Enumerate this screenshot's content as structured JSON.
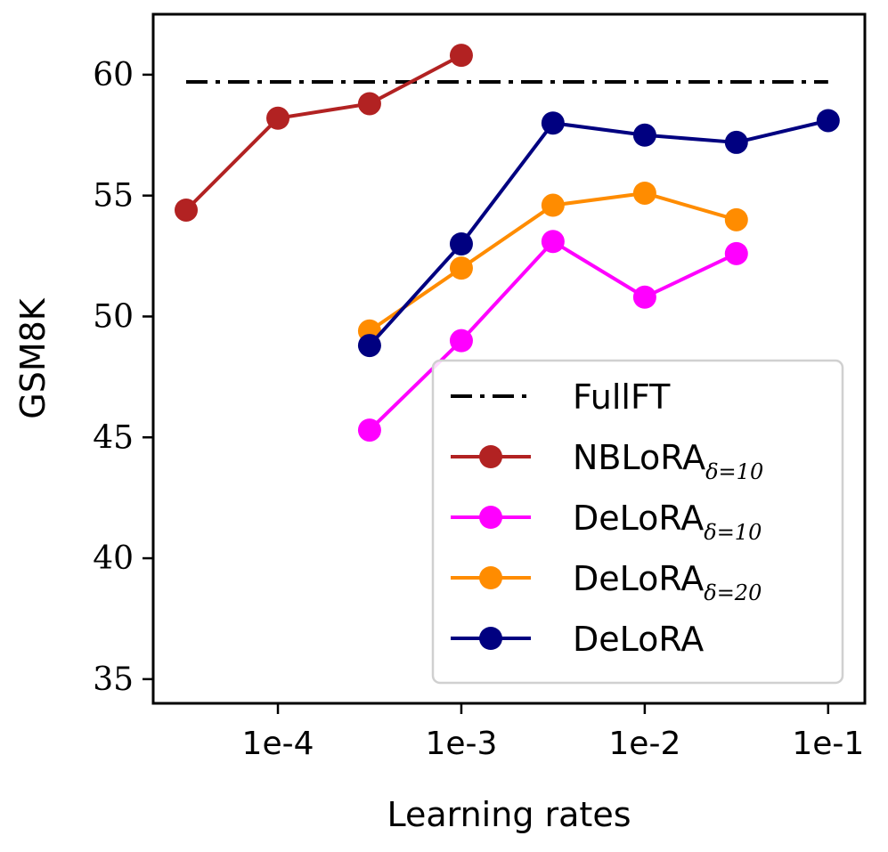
{
  "chart_data": {
    "type": "line",
    "title": "",
    "xlabel": "Learning rates",
    "ylabel": "GSM8K",
    "x_scale": "log",
    "xlim_log10": [
      -4.68,
      -0.8
    ],
    "ylim": [
      34,
      62.5
    ],
    "grid": false,
    "legend_position": "lower-right",
    "x_ticks": [
      {
        "label": "1e-4",
        "value": 0.0001
      },
      {
        "label": "1e-3",
        "value": 0.001
      },
      {
        "label": "1e-2",
        "value": 0.01
      },
      {
        "label": "1e-1",
        "value": 0.1
      }
    ],
    "y_ticks": [
      {
        "label": "35",
        "value": 35
      },
      {
        "label": "40",
        "value": 40
      },
      {
        "label": "45",
        "value": 45
      },
      {
        "label": "50",
        "value": 50
      },
      {
        "label": "55",
        "value": 55
      },
      {
        "label": "60",
        "value": 60
      }
    ],
    "series": [
      {
        "id": "fullft",
        "name": "FullFT",
        "name_sub": "",
        "color": "#000000",
        "style": "dashdot",
        "markers": false,
        "x": [
          3.16e-05,
          0.1
        ],
        "y": [
          59.7,
          59.7
        ]
      },
      {
        "id": "nblora-d10",
        "name": "NBLoRA",
        "name_sub": "δ=10",
        "color": "#b22222",
        "style": "solid",
        "markers": true,
        "x": [
          3.16e-05,
          0.0001,
          0.000316,
          0.001
        ],
        "y": [
          54.4,
          58.2,
          58.8,
          60.8
        ]
      },
      {
        "id": "delora-d10",
        "name": "DeLoRA",
        "name_sub": "δ=10",
        "color": "#ff00ff",
        "style": "solid",
        "markers": true,
        "x": [
          0.000316,
          0.001,
          0.00316,
          0.01,
          0.0316
        ],
        "y": [
          45.3,
          49.0,
          53.1,
          50.8,
          52.6
        ]
      },
      {
        "id": "delora-d20",
        "name": "DeLoRA",
        "name_sub": "δ=20",
        "color": "#ff8c00",
        "style": "solid",
        "markers": true,
        "x": [
          0.000316,
          0.001,
          0.00316,
          0.01,
          0.0316
        ],
        "y": [
          49.4,
          52.0,
          54.6,
          55.1,
          54.0
        ]
      },
      {
        "id": "delora",
        "name": "DeLoRA",
        "name_sub": "",
        "color": "#000080",
        "style": "solid",
        "markers": true,
        "x": [
          0.000316,
          0.001,
          0.00316,
          0.01,
          0.0316,
          0.1
        ],
        "y": [
          48.8,
          53.0,
          58.0,
          57.5,
          57.2,
          58.1
        ]
      }
    ]
  }
}
